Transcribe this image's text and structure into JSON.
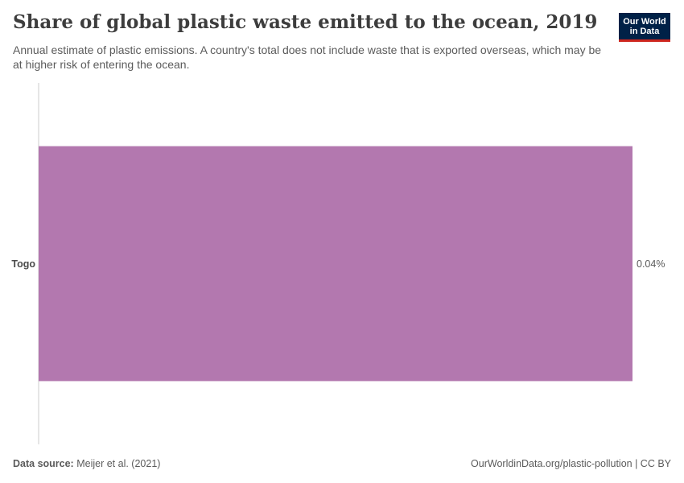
{
  "header": {
    "title": "Share of global plastic waste emitted to the ocean, 2019",
    "subtitle": "Annual estimate of plastic emissions. A country's total does not include waste that is exported overseas, which may be at higher risk of entering the ocean.",
    "logo_line1": "Our World",
    "logo_line2": "in Data"
  },
  "footer": {
    "source_label": "Data source:",
    "source_text": "Meijer et al. (2021)",
    "url_text": "OurWorldinData.org/plastic-pollution | CC BY"
  },
  "colors": {
    "bar": "#b378af",
    "axis": "#cccccc",
    "logo_bg": "#002147",
    "logo_accent": "#ce261e"
  },
  "chart_data": {
    "type": "bar",
    "orientation": "horizontal",
    "categories": [
      "Togo"
    ],
    "values": [
      0.04
    ],
    "value_labels": [
      "0.04%"
    ],
    "unit": "%",
    "title": "Share of global plastic waste emitted to the ocean, 2019",
    "xlabel": "",
    "ylabel": "",
    "xlim": [
      0,
      0.04
    ],
    "grid": false
  }
}
